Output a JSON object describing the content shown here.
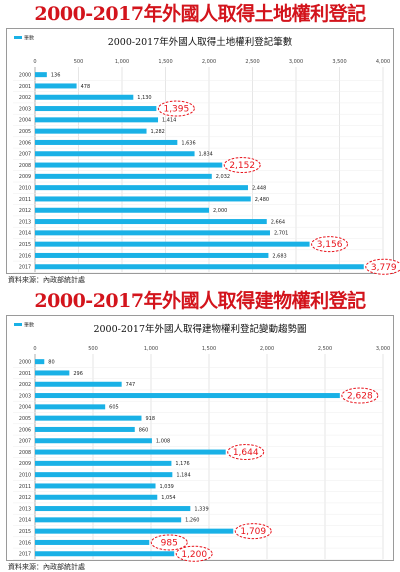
{
  "headline_1": "2000-2017年外國人取得土地權利登記",
  "headline_2": "2000-2017年外國人取得建物權利登記",
  "source_1": "資料來源：內政部統計處",
  "source_2": "資料來源：內政部統計處",
  "colors": {
    "headline": "#d3141c",
    "bar": "#19b1e6",
    "highlight": "#e8141c"
  },
  "chart_data": [
    {
      "type": "bar",
      "orientation": "horizontal",
      "title": "2000-2017年外國人取得土地權利登記筆數",
      "legend": "筆數",
      "legend_position": "top-left",
      "grid": true,
      "xlim": [
        0,
        4000
      ],
      "xticks": [
        "0",
        "500",
        "1,000",
        "1,500",
        "2,000",
        "2,500",
        "3,000",
        "3,500",
        "4,000"
      ],
      "categories": [
        "2000",
        "2001",
        "2002",
        "2003",
        "2004",
        "2005",
        "2006",
        "2007",
        "2008",
        "2009",
        "2010",
        "2011",
        "2012",
        "2013",
        "2014",
        "2015",
        "2016",
        "2017"
      ],
      "values": [
        136,
        478,
        1130,
        1395,
        1414,
        1282,
        1636,
        1834,
        2152,
        2032,
        2448,
        2480,
        2000,
        2664,
        2701,
        3156,
        2683,
        3779
      ],
      "labels": [
        "136",
        "478",
        "1,130",
        "1,395",
        "1,414",
        "1,282",
        "1,636",
        "1,834",
        "2,152",
        "2,032",
        "2,448",
        "2,480",
        "2,000",
        "2,664",
        "2,701",
        "3,156",
        "2,683",
        "3,779"
      ],
      "highlighted": [
        3,
        8,
        15,
        17
      ]
    },
    {
      "type": "bar",
      "orientation": "horizontal",
      "title": "2000-2017年外國人取得建物權利登記變動趨勢圖",
      "legend": "筆數",
      "legend_position": "top-left",
      "grid": true,
      "xlim": [
        0,
        3000
      ],
      "xticks": [
        "0",
        "500",
        "1,000",
        "1,500",
        "2,000",
        "2,500",
        "3,000"
      ],
      "categories": [
        "2000",
        "2001",
        "2002",
        "2003",
        "2004",
        "2005",
        "2006",
        "2007",
        "2008",
        "2009",
        "2010",
        "2011",
        "2012",
        "2013",
        "2014",
        "2015",
        "2016",
        "2017"
      ],
      "values": [
        80,
        296,
        747,
        2628,
        605,
        918,
        860,
        1008,
        1644,
        1176,
        1184,
        1039,
        1054,
        1339,
        1260,
        1709,
        985,
        1200
      ],
      "labels": [
        "80",
        "296",
        "747",
        "2,628",
        "605",
        "918",
        "860",
        "1,008",
        "1,644",
        "1,176",
        "1,184",
        "1,039",
        "1,054",
        "1,339",
        "1,260",
        "1,709",
        "985",
        "1,200"
      ],
      "highlighted": [
        3,
        8,
        15,
        16,
        17
      ]
    }
  ]
}
